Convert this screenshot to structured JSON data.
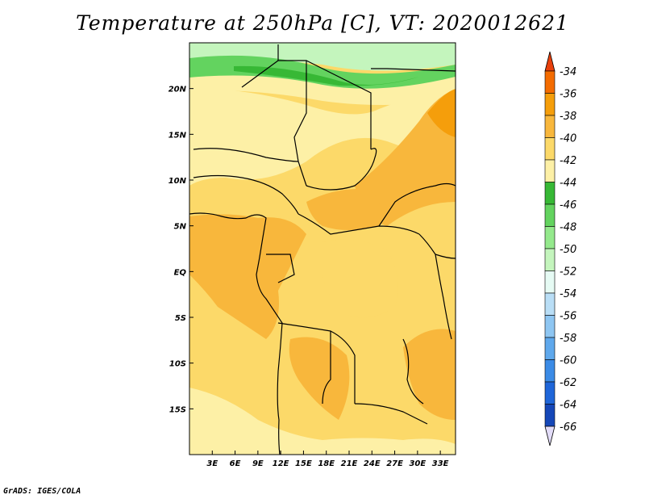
{
  "title": "Temperature at 250hPa [C], VT: 2020012621",
  "footer": "GrADS: IGES/COLA",
  "map": {
    "lon_range": [
      0,
      35
    ],
    "lat_range": [
      -20,
      25
    ],
    "x_ticks": [
      "3E",
      "6E",
      "9E",
      "12E",
      "15E",
      "18E",
      "21E",
      "24E",
      "27E",
      "30E",
      "33E"
    ],
    "y_ticks": [
      "20N",
      "15N",
      "10N",
      "5N",
      "EQ",
      "5S",
      "10S",
      "15S"
    ]
  },
  "colorbar": {
    "labels": [
      "-34",
      "-36",
      "-38",
      "-40",
      "-42",
      "-44",
      "-46",
      "-48",
      "-50",
      "-52",
      "-54",
      "-56",
      "-58",
      "-60",
      "-62",
      "-64",
      "-66"
    ],
    "colors": [
      "#e8400c",
      "#f46c00",
      "#f59e0b",
      "#f8b73c",
      "#fcd969",
      "#fdf0a6",
      "#37b835",
      "#63d35f",
      "#94e98c",
      "#c4f5bd",
      "#e6fbf4",
      "#b9def6",
      "#8ec6f2",
      "#5fa8ec",
      "#3b8be6",
      "#1f66d9",
      "#1547b8",
      "#0c1a76"
    ],
    "top_color": "#e8400c",
    "bottom_color": "#e2dcf8"
  },
  "palette": {
    "cold_green_light": "#c4f5bd",
    "cold_green": "#94e98c",
    "green_mid": "#63d35f",
    "green_dark": "#37b835",
    "pale_yellow": "#fdf0a6",
    "yellow": "#fcd969",
    "orange_light": "#f8b73c",
    "orange": "#f59e0b",
    "border": "#000000"
  }
}
